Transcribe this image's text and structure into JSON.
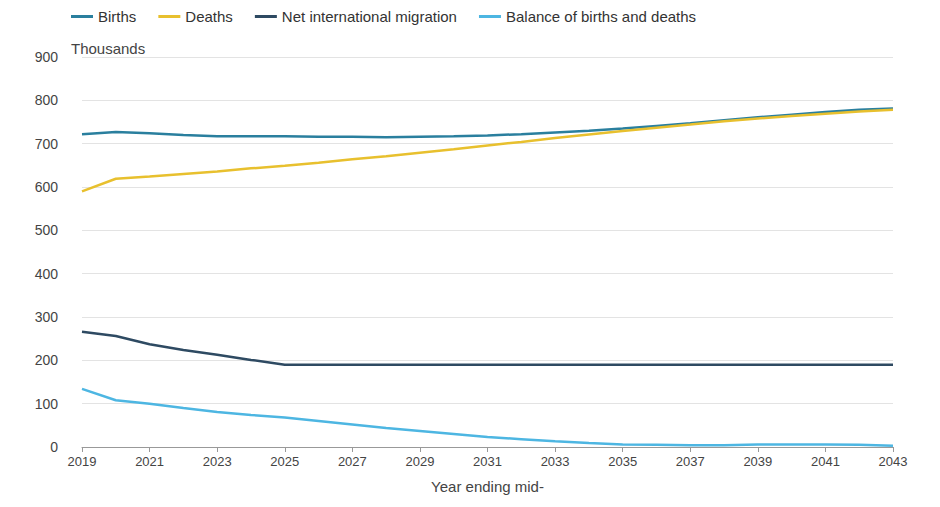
{
  "chart_data": {
    "type": "line",
    "y_label": "Thousands",
    "x_label": "Year ending mid-",
    "x": [
      2019,
      2020,
      2021,
      2022,
      2023,
      2024,
      2025,
      2026,
      2027,
      2028,
      2029,
      2030,
      2031,
      2032,
      2033,
      2034,
      2035,
      2036,
      2037,
      2038,
      2039,
      2040,
      2041,
      2042,
      2043
    ],
    "xlim": [
      2019,
      2043
    ],
    "xticks": [
      2019,
      2021,
      2023,
      2025,
      2027,
      2029,
      2031,
      2033,
      2035,
      2037,
      2039,
      2041,
      2043
    ],
    "ylim": [
      0,
      900
    ],
    "yticks": [
      0,
      100,
      200,
      300,
      400,
      500,
      600,
      700,
      800,
      900
    ],
    "grid": true,
    "legend": "top-left",
    "series": [
      {
        "name": "Births",
        "color": "#2a7f9e",
        "values": [
          722,
          727,
          724,
          720,
          717,
          717,
          717,
          716,
          716,
          715,
          716,
          717,
          719,
          722,
          726,
          730,
          735,
          741,
          747,
          754,
          761,
          767,
          773,
          778,
          781
        ]
      },
      {
        "name": "Deaths",
        "color": "#e8c02e",
        "values": [
          590,
          619,
          624,
          630,
          636,
          643,
          649,
          656,
          664,
          671,
          679,
          687,
          696,
          704,
          713,
          721,
          729,
          737,
          744,
          752,
          758,
          764,
          769,
          774,
          778
        ]
      },
      {
        "name": "Net international migration",
        "color": "#2e4a62",
        "values": [
          266,
          256,
          237,
          224,
          213,
          201,
          190,
          190,
          190,
          190,
          190,
          190,
          190,
          190,
          190,
          190,
          190,
          190,
          190,
          190,
          190,
          190,
          190,
          190,
          190
        ]
      },
      {
        "name": "Balance of births and deaths",
        "color": "#4db6e2",
        "values": [
          134,
          108,
          100,
          90,
          81,
          74,
          68,
          60,
          52,
          44,
          37,
          30,
          23,
          18,
          13,
          9,
          6,
          5,
          4,
          4,
          6,
          6,
          6,
          5,
          3
        ]
      }
    ]
  }
}
